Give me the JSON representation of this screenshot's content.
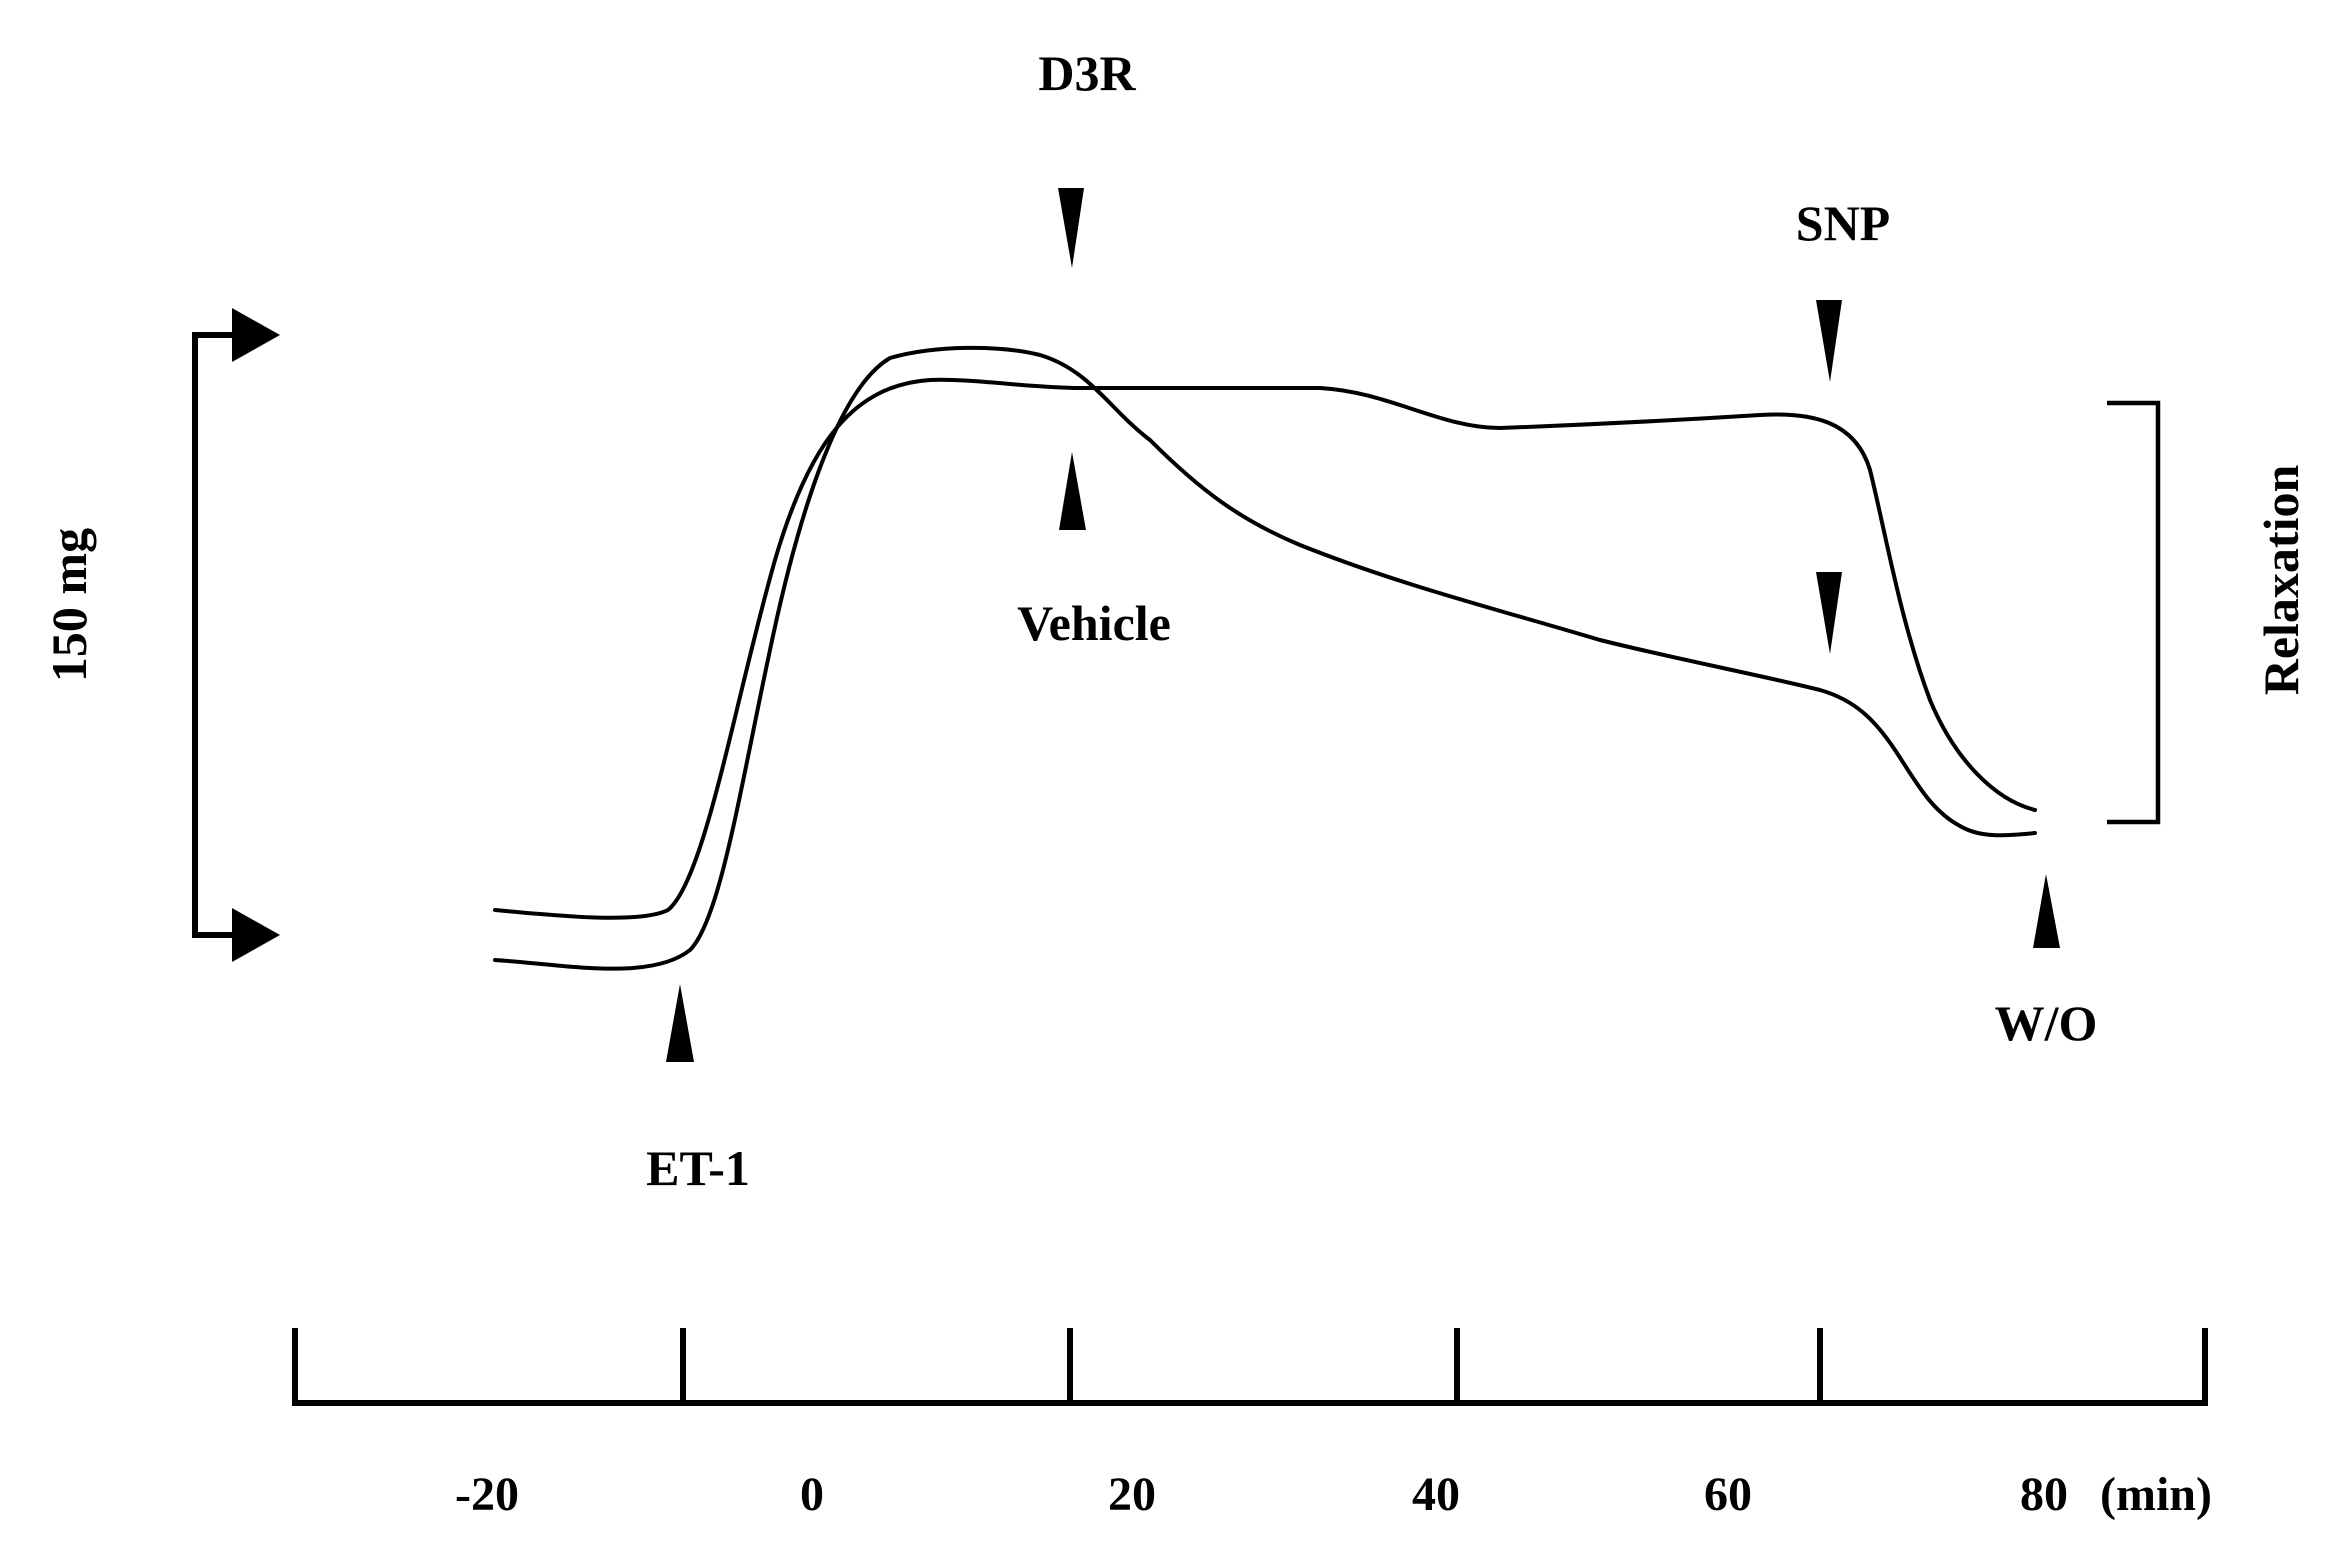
{
  "annotations": {
    "d3r": "D3R",
    "vehicle": "Vehicle",
    "snp": "SNP",
    "et1": "ET-1",
    "wo": "W/O",
    "scale": "150 mg",
    "relaxation": "Relaxation"
  },
  "time_axis": {
    "ticks": [
      "-20",
      "0",
      "20",
      "40",
      "60",
      "80"
    ],
    "unit": "(min)"
  },
  "colors": {
    "ink": "#000000",
    "background": "#ffffff"
  },
  "icons": [
    "arrowhead-down-icon",
    "arrowhead-up-icon",
    "arrow-right-icon"
  ]
}
